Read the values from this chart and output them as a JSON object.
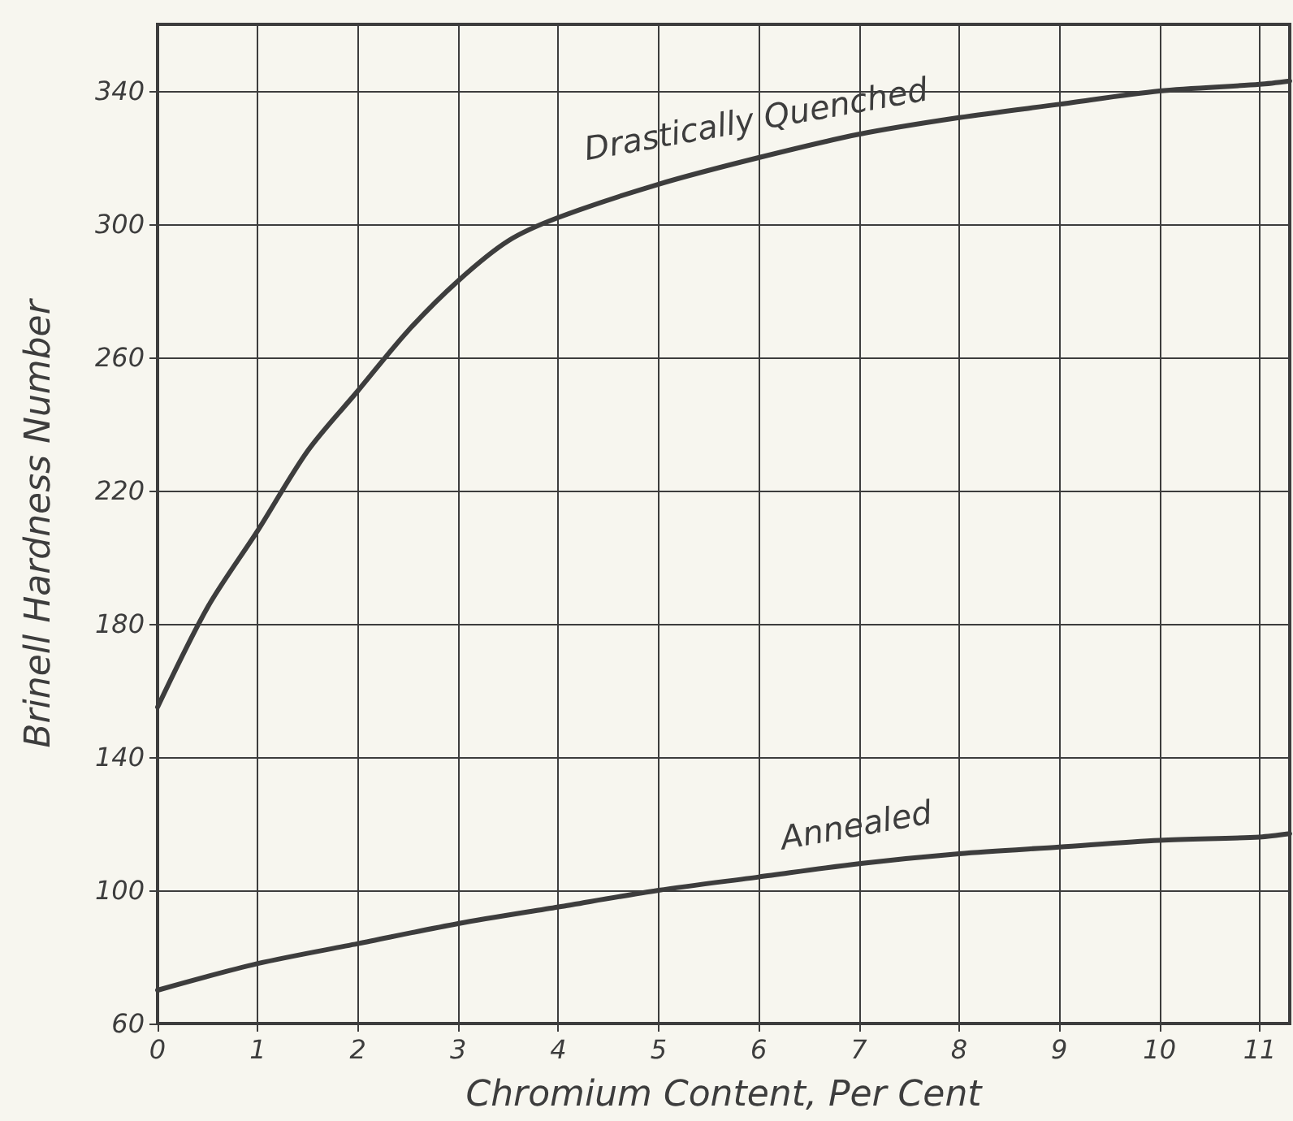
{
  "chart_data": {
    "type": "line",
    "xlabel": "Chromium Content, Per Cent",
    "ylabel": "Brinell Hardness Number",
    "series": [
      {
        "name": "Drastically Quenched",
        "color": "#3d3d3d",
        "x": [
          0,
          0.5,
          1,
          1.5,
          2,
          2.5,
          3,
          3.5,
          4,
          5,
          6,
          7,
          8,
          9,
          10,
          11,
          11.3
        ],
        "values": [
          155,
          185,
          208,
          232,
          250,
          268,
          283,
          295,
          302,
          312,
          320,
          327,
          332,
          336,
          340,
          342,
          343
        ]
      },
      {
        "name": "Annealed",
        "color": "#3d3d3d",
        "x": [
          0,
          1,
          2,
          3,
          4,
          5,
          6,
          7,
          8,
          9,
          10,
          11,
          11.3
        ],
        "values": [
          70,
          78,
          84,
          90,
          95,
          100,
          104,
          108,
          111,
          113,
          115,
          116,
          117
        ]
      }
    ],
    "xlim": [
      0,
      11.3
    ],
    "xticks": [
      0,
      1,
      2,
      3,
      4,
      5,
      6,
      7,
      8,
      9,
      10,
      11
    ],
    "ylim": [
      60,
      360
    ],
    "yticks": [
      60,
      100,
      140,
      180,
      220,
      260,
      300,
      340
    ],
    "grid": true,
    "legend": false,
    "marker": "none",
    "line_style": "solid"
  }
}
